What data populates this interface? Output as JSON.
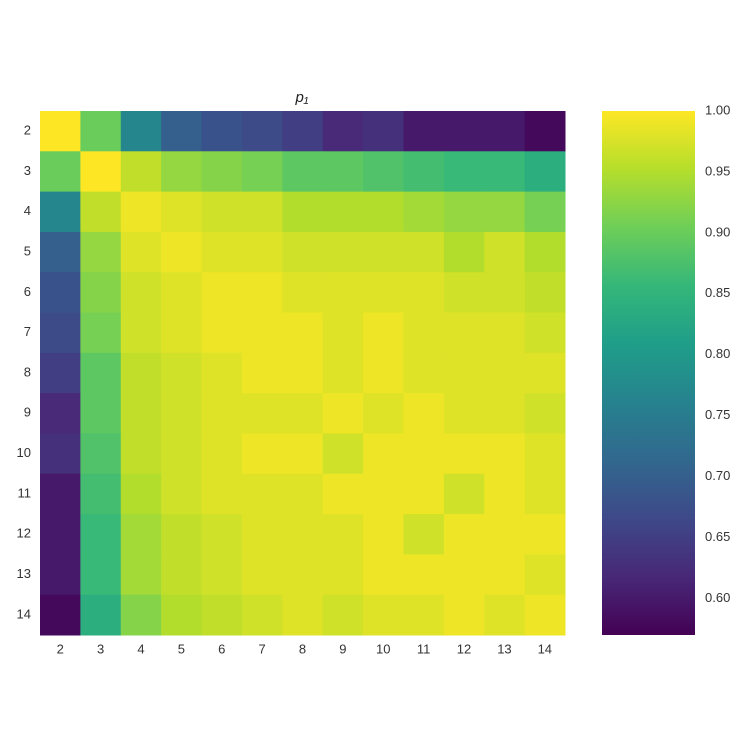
{
  "chart_data": {
    "type": "heatmap",
    "title": "p₁",
    "categories": [
      "2",
      "3",
      "4",
      "5",
      "6",
      "7",
      "8",
      "9",
      "10",
      "11",
      "12",
      "13",
      "14"
    ],
    "values": [
      [
        1.0,
        0.9,
        0.77,
        0.7,
        0.68,
        0.67,
        0.65,
        0.62,
        0.63,
        0.6,
        0.6,
        0.6,
        0.58
      ],
      [
        0.9,
        1.0,
        0.96,
        0.93,
        0.92,
        0.91,
        0.89,
        0.89,
        0.88,
        0.87,
        0.86,
        0.86,
        0.84
      ],
      [
        0.77,
        0.96,
        0.99,
        0.98,
        0.97,
        0.97,
        0.95,
        0.95,
        0.95,
        0.94,
        0.93,
        0.93,
        0.91
      ],
      [
        0.7,
        0.93,
        0.98,
        0.99,
        0.98,
        0.98,
        0.97,
        0.97,
        0.97,
        0.97,
        0.95,
        0.97,
        0.95
      ],
      [
        0.68,
        0.92,
        0.97,
        0.98,
        0.99,
        0.99,
        0.98,
        0.98,
        0.98,
        0.98,
        0.97,
        0.97,
        0.96
      ],
      [
        0.67,
        0.91,
        0.97,
        0.98,
        0.99,
        0.99,
        0.99,
        0.98,
        0.99,
        0.98,
        0.98,
        0.98,
        0.97
      ],
      [
        0.65,
        0.89,
        0.96,
        0.97,
        0.98,
        0.99,
        0.99,
        0.98,
        0.99,
        0.98,
        0.98,
        0.98,
        0.98
      ],
      [
        0.62,
        0.89,
        0.96,
        0.97,
        0.98,
        0.98,
        0.98,
        0.99,
        0.98,
        0.99,
        0.98,
        0.98,
        0.97
      ],
      [
        0.63,
        0.88,
        0.96,
        0.97,
        0.98,
        0.99,
        0.99,
        0.97,
        0.99,
        0.99,
        0.99,
        0.99,
        0.98
      ],
      [
        0.6,
        0.87,
        0.95,
        0.97,
        0.98,
        0.98,
        0.98,
        0.99,
        0.99,
        0.99,
        0.97,
        0.99,
        0.98
      ],
      [
        0.6,
        0.86,
        0.94,
        0.96,
        0.97,
        0.98,
        0.98,
        0.98,
        0.99,
        0.97,
        0.99,
        0.99,
        0.99
      ],
      [
        0.6,
        0.86,
        0.94,
        0.96,
        0.97,
        0.98,
        0.98,
        0.98,
        0.99,
        0.99,
        0.99,
        0.99,
        0.98
      ],
      [
        0.58,
        0.84,
        0.92,
        0.95,
        0.96,
        0.97,
        0.98,
        0.97,
        0.98,
        0.98,
        0.99,
        0.98,
        0.99
      ]
    ],
    "colormap": "viridis",
    "zlim": [
      0.57,
      1.0
    ],
    "zticks": [
      {
        "value": 0.6,
        "label": "0.60"
      },
      {
        "value": 0.65,
        "label": "0.65"
      },
      {
        "value": 0.7,
        "label": "0.70"
      },
      {
        "value": 0.75,
        "label": "0.75"
      },
      {
        "value": 0.8,
        "label": "0.80"
      },
      {
        "value": 0.85,
        "label": "0.85"
      },
      {
        "value": 0.9,
        "label": "0.90"
      },
      {
        "value": 0.95,
        "label": "0.95"
      },
      {
        "value": 1.0,
        "label": "1.00"
      }
    ]
  }
}
